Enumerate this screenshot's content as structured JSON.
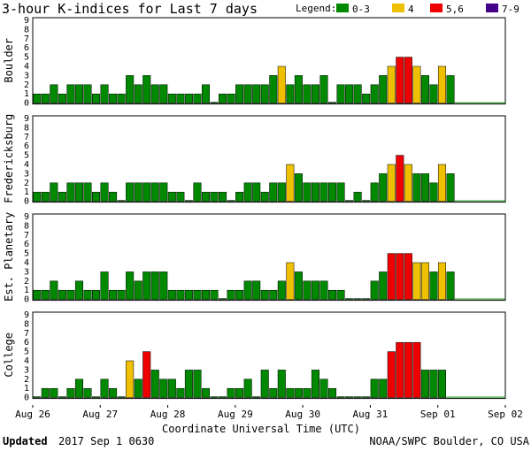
{
  "title": "3-hour K-indices for Last 7 days",
  "legend": {
    "label": "Legend:",
    "items": [
      {
        "label": "0-3",
        "color": "#008800"
      },
      {
        "label": "4",
        "color": "#eec000"
      },
      {
        "label": "5,6",
        "color": "#ee0000"
      },
      {
        "label": "7-9",
        "color": "#440088"
      }
    ]
  },
  "xlabel": "Coordinate Universal Time (UTC)",
  "footer": {
    "updated_label": "Updated",
    "updated_value": "2017 Sep  1 0630",
    "credit": "NOAA/SWPC Boulder, CO USA"
  },
  "chart_data": {
    "type": "bar",
    "ylim": [
      0,
      9
    ],
    "yticks": [
      "0",
      "1",
      "2",
      "3",
      "4",
      "5",
      "6",
      "7",
      "8",
      "9"
    ],
    "x_tick_labels": [
      "Aug 26",
      "Aug 27",
      "Aug 28",
      "Aug 29",
      "Aug 30",
      "Aug 31",
      "Sep 01",
      "Sep 02"
    ],
    "intervals_per_day": 8,
    "days": 7,
    "series": [
      {
        "name": "Boulder",
        "values": [
          1,
          1,
          2,
          1,
          2,
          2,
          2,
          1,
          2,
          1,
          1,
          3,
          2,
          3,
          2,
          2,
          1,
          1,
          1,
          1,
          2,
          0,
          1,
          1,
          2,
          2,
          2,
          2,
          3,
          4,
          2,
          3,
          2,
          2,
          3,
          0,
          2,
          2,
          2,
          1,
          2,
          3,
          4,
          5,
          5,
          4,
          3,
          2,
          4,
          3
        ]
      },
      {
        "name": "Fredericksburg",
        "values": [
          1,
          1,
          2,
          1,
          2,
          2,
          2,
          1,
          2,
          1,
          0,
          2,
          2,
          2,
          2,
          2,
          1,
          1,
          0,
          2,
          1,
          1,
          1,
          0,
          1,
          2,
          2,
          1,
          2,
          2,
          4,
          3,
          2,
          2,
          2,
          2,
          2,
          0,
          1,
          0,
          2,
          3,
          4,
          5,
          4,
          3,
          3,
          2,
          4,
          3
        ]
      },
      {
        "name": "Est. Planetary",
        "values": [
          1,
          1,
          2,
          1,
          1,
          2,
          1,
          1,
          3,
          1,
          1,
          3,
          2,
          3,
          3,
          3,
          1,
          1,
          1,
          1,
          1,
          1,
          0,
          1,
          1,
          2,
          2,
          1,
          1,
          2,
          4,
          3,
          2,
          2,
          2,
          1,
          1,
          0,
          0,
          0,
          2,
          3,
          5,
          5,
          5,
          4,
          4,
          3,
          4,
          3
        ]
      },
      {
        "name": "College",
        "values": [
          0,
          1,
          1,
          0,
          1,
          2,
          1,
          0,
          2,
          1,
          0,
          4,
          2,
          5,
          3,
          2,
          2,
          1,
          3,
          3,
          1,
          0,
          0,
          1,
          1,
          2,
          0,
          3,
          1,
          3,
          1,
          1,
          1,
          3,
          2,
          1,
          0,
          0,
          0,
          0,
          2,
          2,
          5,
          6,
          6,
          6,
          3,
          3,
          3
        ]
      }
    ]
  }
}
